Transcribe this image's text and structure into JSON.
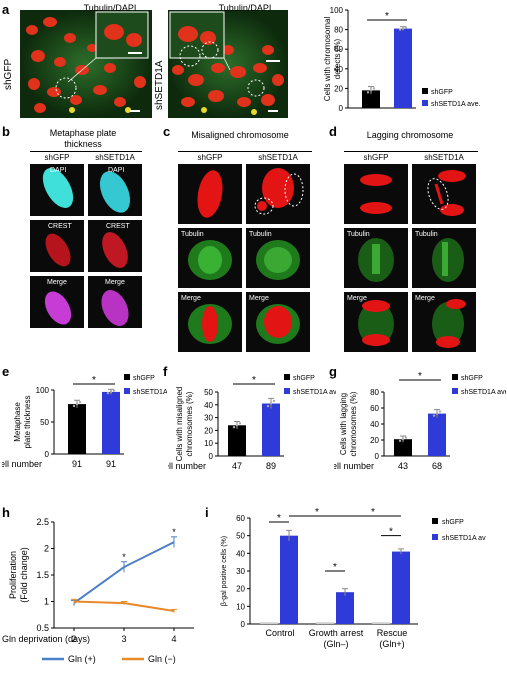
{
  "panels": {
    "a": {
      "letter": "a",
      "img_titles": [
        "Tubulin/DAPI",
        "Tubulin/DAPI"
      ],
      "row_labels": [
        "shGFP",
        "shSETD1A"
      ]
    },
    "b": {
      "letter": "b",
      "title_line1": "Metaphase plate",
      "title_line2": "thickness",
      "cols": [
        "shGFP",
        "shSETD1A"
      ],
      "rows": [
        "DAPI",
        "CREST",
        "Merge"
      ]
    },
    "c": {
      "letter": "c",
      "title": "Misaligned chromosome",
      "cols": [
        "shGFP",
        "shSETD1A"
      ],
      "rows": [
        "Tubulin",
        "Merge"
      ]
    },
    "d": {
      "letter": "d",
      "title": "Lagging chromosome",
      "cols": [
        "shGFP",
        "shSETD1A"
      ],
      "rows": [
        "Tubulin",
        "Merge"
      ]
    },
    "e": {
      "letter": "e"
    },
    "f": {
      "letter": "f"
    },
    "g": {
      "letter": "g"
    },
    "h": {
      "letter": "h"
    },
    "i": {
      "letter": "i"
    }
  },
  "colors": {
    "shGFP": "#000000",
    "shSETD1A": "#2f3bd9",
    "gln_plus": "#4a7fc9",
    "gln_minus": "#e8892a"
  },
  "chart_data": [
    {
      "id": "a",
      "type": "bar",
      "categories": [
        "shGFP",
        "shSETD1A"
      ],
      "values": [
        18,
        81
      ],
      "errors": [
        4,
        2
      ],
      "ylabel": "Cells with chromosomal defects (%)",
      "ylim": [
        0,
        100
      ],
      "yticks": [
        0,
        20,
        40,
        60,
        80,
        100
      ],
      "legend": [
        "shGFP",
        "shSETD1A ave."
      ],
      "significance": "*"
    },
    {
      "id": "e",
      "type": "bar",
      "categories": [
        "shGFP",
        "shSETD1A ave."
      ],
      "values": [
        78,
        97
      ],
      "errors": [
        6,
        4
      ],
      "ylabel": "Metaphase plate thickness",
      "ylim": [
        0,
        100
      ],
      "yticks": [
        0,
        50,
        100
      ],
      "cell_number_label": "Cell number",
      "cell_numbers": [
        "91",
        "91"
      ],
      "legend": [
        "shGFP",
        "shSETD1A ave."
      ],
      "significance": "*"
    },
    {
      "id": "f",
      "type": "bar",
      "categories": [
        "shGFP",
        "shSETD1A"
      ],
      "values": [
        24,
        41
      ],
      "errors": [
        3,
        4
      ],
      "ylabel": "Cells with misaligned chromosomes (%)",
      "ylim": [
        0,
        50
      ],
      "yticks": [
        0,
        10,
        20,
        30,
        40,
        50
      ],
      "cell_number_label": "Cell number",
      "cell_numbers": [
        "47",
        "89"
      ],
      "legend": [
        "shGFP",
        "shSETD1A ave."
      ],
      "significance": "*"
    },
    {
      "id": "g",
      "type": "bar",
      "categories": [
        "shGFP",
        "shSETD1A ave."
      ],
      "values": [
        21,
        53
      ],
      "errors": [
        4,
        5
      ],
      "ylabel": "Cells with lagging chromosomes (%)",
      "ylim": [
        0,
        80
      ],
      "yticks": [
        0,
        20,
        40,
        60,
        80
      ],
      "cell_number_label": "Cell number",
      "cell_numbers": [
        "43",
        "68"
      ],
      "legend": [
        "shGFP",
        "shSETD1A ave."
      ],
      "significance": "*"
    },
    {
      "id": "h",
      "type": "line",
      "x": [
        2,
        3,
        4
      ],
      "series": [
        {
          "name": "Gln (+)",
          "values": [
            0.97,
            1.65,
            2.12
          ],
          "errors": [
            0.05,
            0.1,
            0.1
          ]
        },
        {
          "name": "Gln (−)",
          "values": [
            1.0,
            0.97,
            0.82
          ],
          "errors": [
            0.04,
            0.03,
            0.03
          ]
        }
      ],
      "xlabel": "Gln deprivation (days)",
      "ylabel": "Proliferation (Fold change)",
      "ylim": [
        0.5,
        2.5
      ],
      "yticks": [
        "0.5",
        "1",
        "1.5",
        "2",
        "2.5"
      ],
      "xticks": [
        "2",
        "3",
        "4"
      ],
      "significance": [
        "*",
        "*"
      ]
    },
    {
      "id": "i",
      "type": "bar",
      "groups": [
        "Control",
        "Growth arrest",
        "Rescue"
      ],
      "group_sublabels": [
        "",
        "(Gln–)",
        "(Gln+)"
      ],
      "series": [
        {
          "name": "shGFP",
          "values": [
            1,
            1,
            1
          ]
        },
        {
          "name": "shSETD1A av",
          "values": [
            50,
            18,
            41
          ]
        }
      ],
      "errors": [
        3,
        2,
        1.5
      ],
      "ylabel": "β-gal positive cells (%)",
      "ylim": [
        0,
        60
      ],
      "yticks": [
        0,
        10,
        20,
        30,
        40,
        50,
        60
      ],
      "significance": "*"
    }
  ]
}
